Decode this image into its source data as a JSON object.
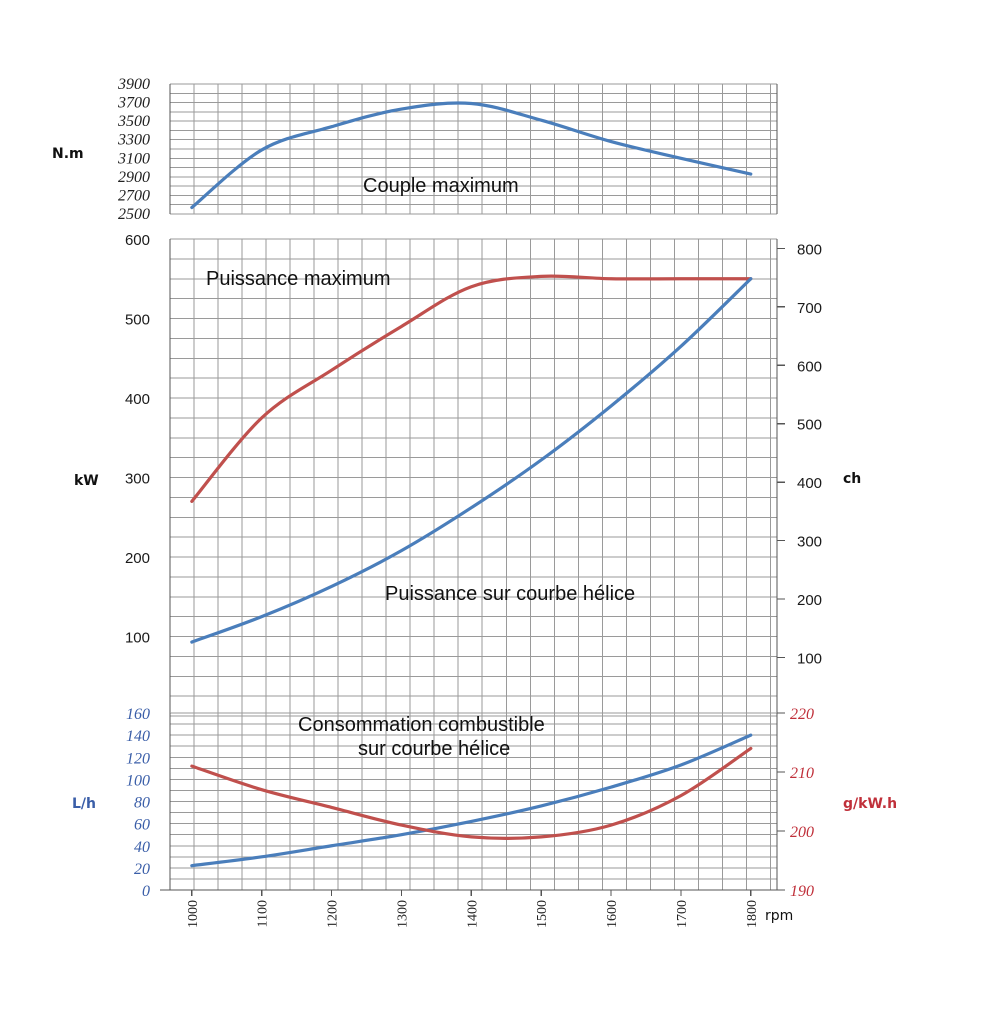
{
  "chart_data": [
    {
      "type": "line",
      "id": "torque",
      "annotation": "Couple maximum",
      "x": [
        1000,
        1100,
        1200,
        1300,
        1400,
        1500,
        1600,
        1700,
        1800
      ],
      "xlabel": "rpm",
      "ylabel": "N.m",
      "ylim": [
        2500,
        3900
      ],
      "yticks": [
        "2500",
        "2700",
        "2900",
        "3100",
        "3300",
        "3500",
        "3700",
        "3900"
      ],
      "grid": true,
      "series": [
        {
          "values": [
            2570,
            3190,
            3440,
            3630,
            3690,
            3510,
            3280,
            3100,
            2930
          ],
          "color": "#4a7ebb"
        }
      ]
    },
    {
      "type": "line",
      "id": "power",
      "annotations": [
        "Puissance maximum",
        "Puissance sur courbe hélice"
      ],
      "x": [
        1000,
        1100,
        1200,
        1300,
        1400,
        1500,
        1600,
        1700,
        1800
      ],
      "xlabel": "rpm",
      "ylabel": "kW",
      "ylabel_right": "ch",
      "ylim": [
        0,
        600
      ],
      "yticks": [
        "100",
        "200",
        "300",
        "400",
        "500",
        "600"
      ],
      "ylim_right": [
        0,
        816
      ],
      "yticks_right": [
        "100",
        "200",
        "300",
        "400",
        "500",
        "600",
        "700",
        "800"
      ],
      "grid": true,
      "series": [
        {
          "values": [
            270,
            375,
            435,
            490,
            540,
            553,
            550,
            550,
            550
          ],
          "color": "#c0504d"
        },
        {
          "values": [
            93,
            125,
            163,
            208,
            262,
            322,
            390,
            465,
            550
          ],
          "color": "#4a7ebb"
        }
      ]
    },
    {
      "type": "line",
      "id": "consumption",
      "annotation": [
        "Consommation combustible",
        "sur courbe hélice"
      ],
      "x": [
        1000,
        1100,
        1200,
        1300,
        1400,
        1500,
        1600,
        1700,
        1800
      ],
      "xticks": [
        "1000",
        "1100",
        "1200",
        "1300",
        "1400",
        "1500",
        "1600",
        "1700",
        "1800"
      ],
      "xlabel": "rpm",
      "ylabel": "L/h",
      "ylabel_right": "g/kW.h",
      "ylim": [
        0,
        160
      ],
      "yticks": [
        "0",
        "20",
        "40",
        "60",
        "80",
        "100",
        "120",
        "140",
        "160"
      ],
      "ylim_right": [
        190,
        220
      ],
      "yticks_right": [
        "190",
        "200",
        "210",
        "220"
      ],
      "grid": true,
      "series": [
        {
          "values": [
            22,
            30,
            40,
            50,
            62,
            76,
            93,
            113,
            140
          ],
          "color": "#4a7ebb",
          "axis": "left"
        },
        {
          "values": [
            211,
            207,
            204,
            201,
            199,
            199,
            201,
            206,
            214
          ],
          "color": "#c0504d",
          "axis": "right"
        }
      ]
    }
  ]
}
